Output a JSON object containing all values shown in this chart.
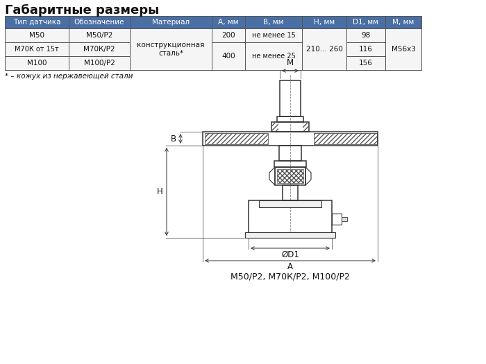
{
  "title": "Габаритные размеры",
  "table_headers": [
    "Тип датчика",
    "Обозначение",
    "Материал",
    "А, мм",
    "В, мм",
    "Н, мм",
    "D1, мм",
    "М, мм"
  ],
  "footnote": "* – кожух из нержавеющей стали",
  "caption": "М50/Р2, М70К/Р², М100/Р²",
  "bg_color": "#ffffff",
  "table_header_bg": "#4a6fa5",
  "table_header_fg": "#ffffff",
  "table_border": "#555555",
  "line_color": "#333333"
}
